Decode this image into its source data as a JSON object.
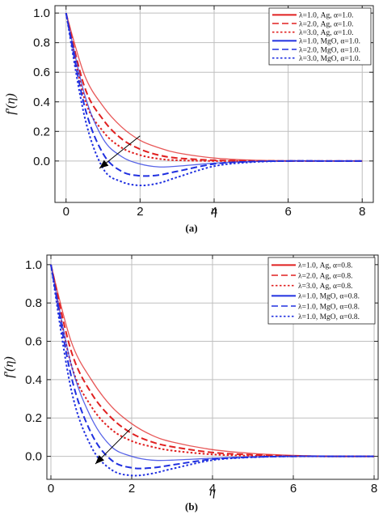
{
  "colors": {
    "red": "#e02020",
    "blue": "#2030e0",
    "grid": "#bfbfbf",
    "arrow": "#000000"
  },
  "chart_data": [
    {
      "type": "line",
      "panel_label": "(a)",
      "xlabel": "η",
      "ylabel": "f′(η)",
      "xlim": [
        -0.3,
        8.3
      ],
      "ylim": [
        -0.28,
        1.05
      ],
      "xticks": [
        "0",
        "2",
        "4",
        "6",
        "8"
      ],
      "yticks": [
        "0.0",
        "0.2",
        "0.4",
        "0.6",
        "0.8",
        "1.0"
      ],
      "grid": true,
      "legend_position": "top-right",
      "arrow": {
        "from": [
          2.0,
          0.17
        ],
        "to": [
          0.9,
          -0.05
        ]
      },
      "series": [
        {
          "name": "λ=1.0, Ag, α=1.0.",
          "color": "red",
          "dash": "solid",
          "fluid": "Ag",
          "x": [
            0,
            0.5,
            1,
            1.5,
            2,
            2.5,
            3,
            4,
            5,
            6,
            7,
            8
          ],
          "y": [
            1.0,
            0.58,
            0.37,
            0.23,
            0.14,
            0.09,
            0.055,
            0.02,
            0.006,
            0.002,
            0.0,
            0.0
          ]
        },
        {
          "name": "λ=2.0, Ag, α=1.0.",
          "color": "red",
          "dash": "dashed",
          "fluid": "Ag",
          "x": [
            0,
            0.5,
            1,
            1.5,
            2,
            2.5,
            3,
            4,
            5,
            6,
            7,
            8
          ],
          "y": [
            1.0,
            0.5,
            0.28,
            0.15,
            0.08,
            0.04,
            0.02,
            0.005,
            0.001,
            0.0,
            0.0,
            0.0
          ]
        },
        {
          "name": "λ=3.0, Ag, α=1.0.",
          "color": "red",
          "dash": "dotted",
          "fluid": "Ag",
          "x": [
            0,
            0.5,
            1,
            1.5,
            2,
            2.5,
            3,
            4,
            5,
            6,
            7,
            8
          ],
          "y": [
            1.0,
            0.42,
            0.2,
            0.09,
            0.04,
            0.015,
            0.005,
            0.0,
            0.0,
            0.0,
            0.0,
            0.0
          ]
        },
        {
          "name": "λ=1.0, MgO, α=1.0.",
          "color": "blue",
          "dash": "solid",
          "fluid": "MgO",
          "x": [
            0,
            0.5,
            1,
            1.5,
            2,
            2.5,
            3,
            4,
            5,
            6,
            7,
            8
          ],
          "y": [
            1.0,
            0.45,
            0.15,
            0.03,
            -0.02,
            -0.04,
            -0.035,
            -0.015,
            -0.004,
            0.0,
            0.0,
            0.0
          ]
        },
        {
          "name": "λ=2.0, MgO, α=1.0.",
          "color": "blue",
          "dash": "dashed",
          "fluid": "MgO",
          "x": [
            0,
            0.5,
            1,
            1.5,
            2,
            2.5,
            3,
            4,
            5,
            6,
            7,
            8
          ],
          "y": [
            1.0,
            0.37,
            0.05,
            -0.07,
            -0.1,
            -0.095,
            -0.07,
            -0.02,
            -0.004,
            0.0,
            0.0,
            0.0
          ]
        },
        {
          "name": "λ=3.0, MgO, α=1.0.",
          "color": "blue",
          "dash": "dotted",
          "fluid": "MgO",
          "x": [
            0,
            0.5,
            1,
            1.5,
            2,
            2.5,
            3,
            4,
            5,
            6,
            7,
            8
          ],
          "y": [
            1.0,
            0.3,
            -0.05,
            -0.14,
            -0.165,
            -0.15,
            -0.11,
            -0.035,
            -0.008,
            0.0,
            0.0,
            0.0
          ]
        }
      ]
    },
    {
      "type": "line",
      "panel_label": "(b)",
      "xlabel": "η",
      "ylabel": "f′(η)",
      "xlim": [
        -0.1,
        8.1
      ],
      "ylim": [
        -0.12,
        1.05
      ],
      "xticks": [
        "0",
        "2",
        "4",
        "6",
        "8"
      ],
      "yticks": [
        "0.0",
        "0.2",
        "0.4",
        "0.6",
        "0.8",
        "1.0"
      ],
      "grid": true,
      "legend_position": "top-right",
      "arrow": {
        "from": [
          2.0,
          0.15
        ],
        "to": [
          1.1,
          -0.04
        ]
      },
      "series": [
        {
          "name": "λ=1.0, Ag, α=0.8.",
          "color": "red",
          "dash": "solid",
          "fluid": "Ag",
          "x": [
            0,
            0.5,
            1,
            1.5,
            2,
            2.5,
            3,
            4,
            5,
            6,
            7,
            8
          ],
          "y": [
            1.0,
            0.6,
            0.4,
            0.26,
            0.17,
            0.11,
            0.075,
            0.035,
            0.015,
            0.005,
            0.001,
            0.0
          ]
        },
        {
          "name": "λ=2.0, Ag, α=0.8.",
          "color": "red",
          "dash": "dashed",
          "fluid": "Ag",
          "x": [
            0,
            0.5,
            1,
            1.5,
            2,
            2.5,
            3,
            4,
            5,
            6,
            7,
            8
          ],
          "y": [
            1.0,
            0.55,
            0.33,
            0.2,
            0.12,
            0.075,
            0.05,
            0.02,
            0.008,
            0.002,
            0.0,
            0.0
          ]
        },
        {
          "name": "λ=3.0, Ag, α=0.8.",
          "color": "red",
          "dash": "dotted",
          "fluid": "Ag",
          "x": [
            0,
            0.5,
            1,
            1.5,
            2,
            2.5,
            3,
            4,
            5,
            6,
            7,
            8
          ],
          "y": [
            1.0,
            0.48,
            0.26,
            0.14,
            0.08,
            0.05,
            0.03,
            0.01,
            0.003,
            0.0,
            0.0,
            0.0
          ]
        },
        {
          "name": "λ=1.0, MgO, α=0.8.",
          "color": "blue",
          "dash": "solid",
          "fluid": "MgO",
          "x": [
            0,
            0.5,
            1,
            1.5,
            2,
            2.5,
            3,
            4,
            5,
            6,
            7,
            8
          ],
          "y": [
            1.0,
            0.48,
            0.2,
            0.05,
            0.0,
            -0.02,
            -0.02,
            -0.01,
            -0.003,
            0.0,
            0.0,
            0.0
          ]
        },
        {
          "name": "λ=1.0, MgO, α=0.8.",
          "color": "blue",
          "dash": "dashed",
          "fluid": "MgO",
          "x": [
            0,
            0.5,
            1,
            1.5,
            2,
            2.5,
            3,
            4,
            5,
            6,
            7,
            8
          ],
          "y": [
            1.0,
            0.42,
            0.12,
            -0.02,
            -0.06,
            -0.06,
            -0.045,
            -0.015,
            -0.004,
            0.0,
            0.0,
            0.0
          ]
        },
        {
          "name": "λ=1.0, MgO, α=0.8.",
          "color": "blue",
          "dash": "dotted",
          "fluid": "MgO",
          "x": [
            0,
            0.5,
            1,
            1.5,
            2,
            2.5,
            3,
            4,
            5,
            6,
            7,
            8
          ],
          "y": [
            1.0,
            0.35,
            0.05,
            -0.07,
            -0.1,
            -0.09,
            -0.065,
            -0.02,
            -0.005,
            0.0,
            0.0,
            0.0
          ]
        }
      ]
    }
  ]
}
